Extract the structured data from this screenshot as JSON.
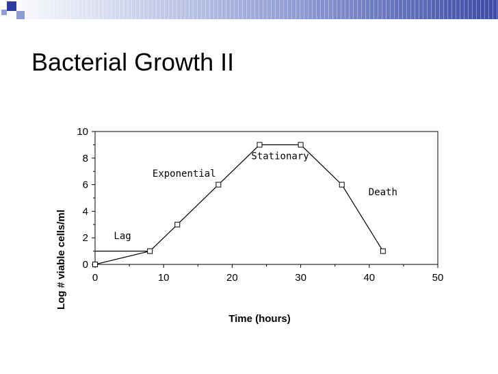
{
  "slide": {
    "title": "Bacterial Growth II",
    "band_colors": [
      "#d7dcef",
      "#3c4ba6"
    ],
    "corner_colors": [
      "#2d3b9e",
      "#8f9bd3"
    ]
  },
  "chart_data": {
    "type": "line",
    "x": [
      0,
      8,
      12,
      18,
      24,
      30,
      36,
      42
    ],
    "series": [
      {
        "values": [
          0,
          1,
          3,
          6,
          9,
          9,
          6,
          1
        ]
      }
    ],
    "extra_segment": {
      "from": [
        0,
        1
      ],
      "to": [
        8,
        1
      ]
    },
    "xlabel": "Time (hours)",
    "ylabel": "Log # viable cells/ml",
    "xlim": [
      0,
      50
    ],
    "ylim": [
      0,
      10
    ],
    "xticks": [
      0,
      10,
      20,
      30,
      40,
      50
    ],
    "yticks": [
      0,
      2,
      4,
      6,
      8,
      10
    ],
    "grid": false,
    "marker": "square",
    "annotations": [
      {
        "text": "Lag",
        "x": 4,
        "y": 1.9
      },
      {
        "text": "Exponential",
        "x": 13,
        "y": 6.6
      },
      {
        "text": "Stationary",
        "x": 27,
        "y": 7.9
      },
      {
        "text": "Death",
        "x": 42,
        "y": 5.2
      }
    ]
  }
}
